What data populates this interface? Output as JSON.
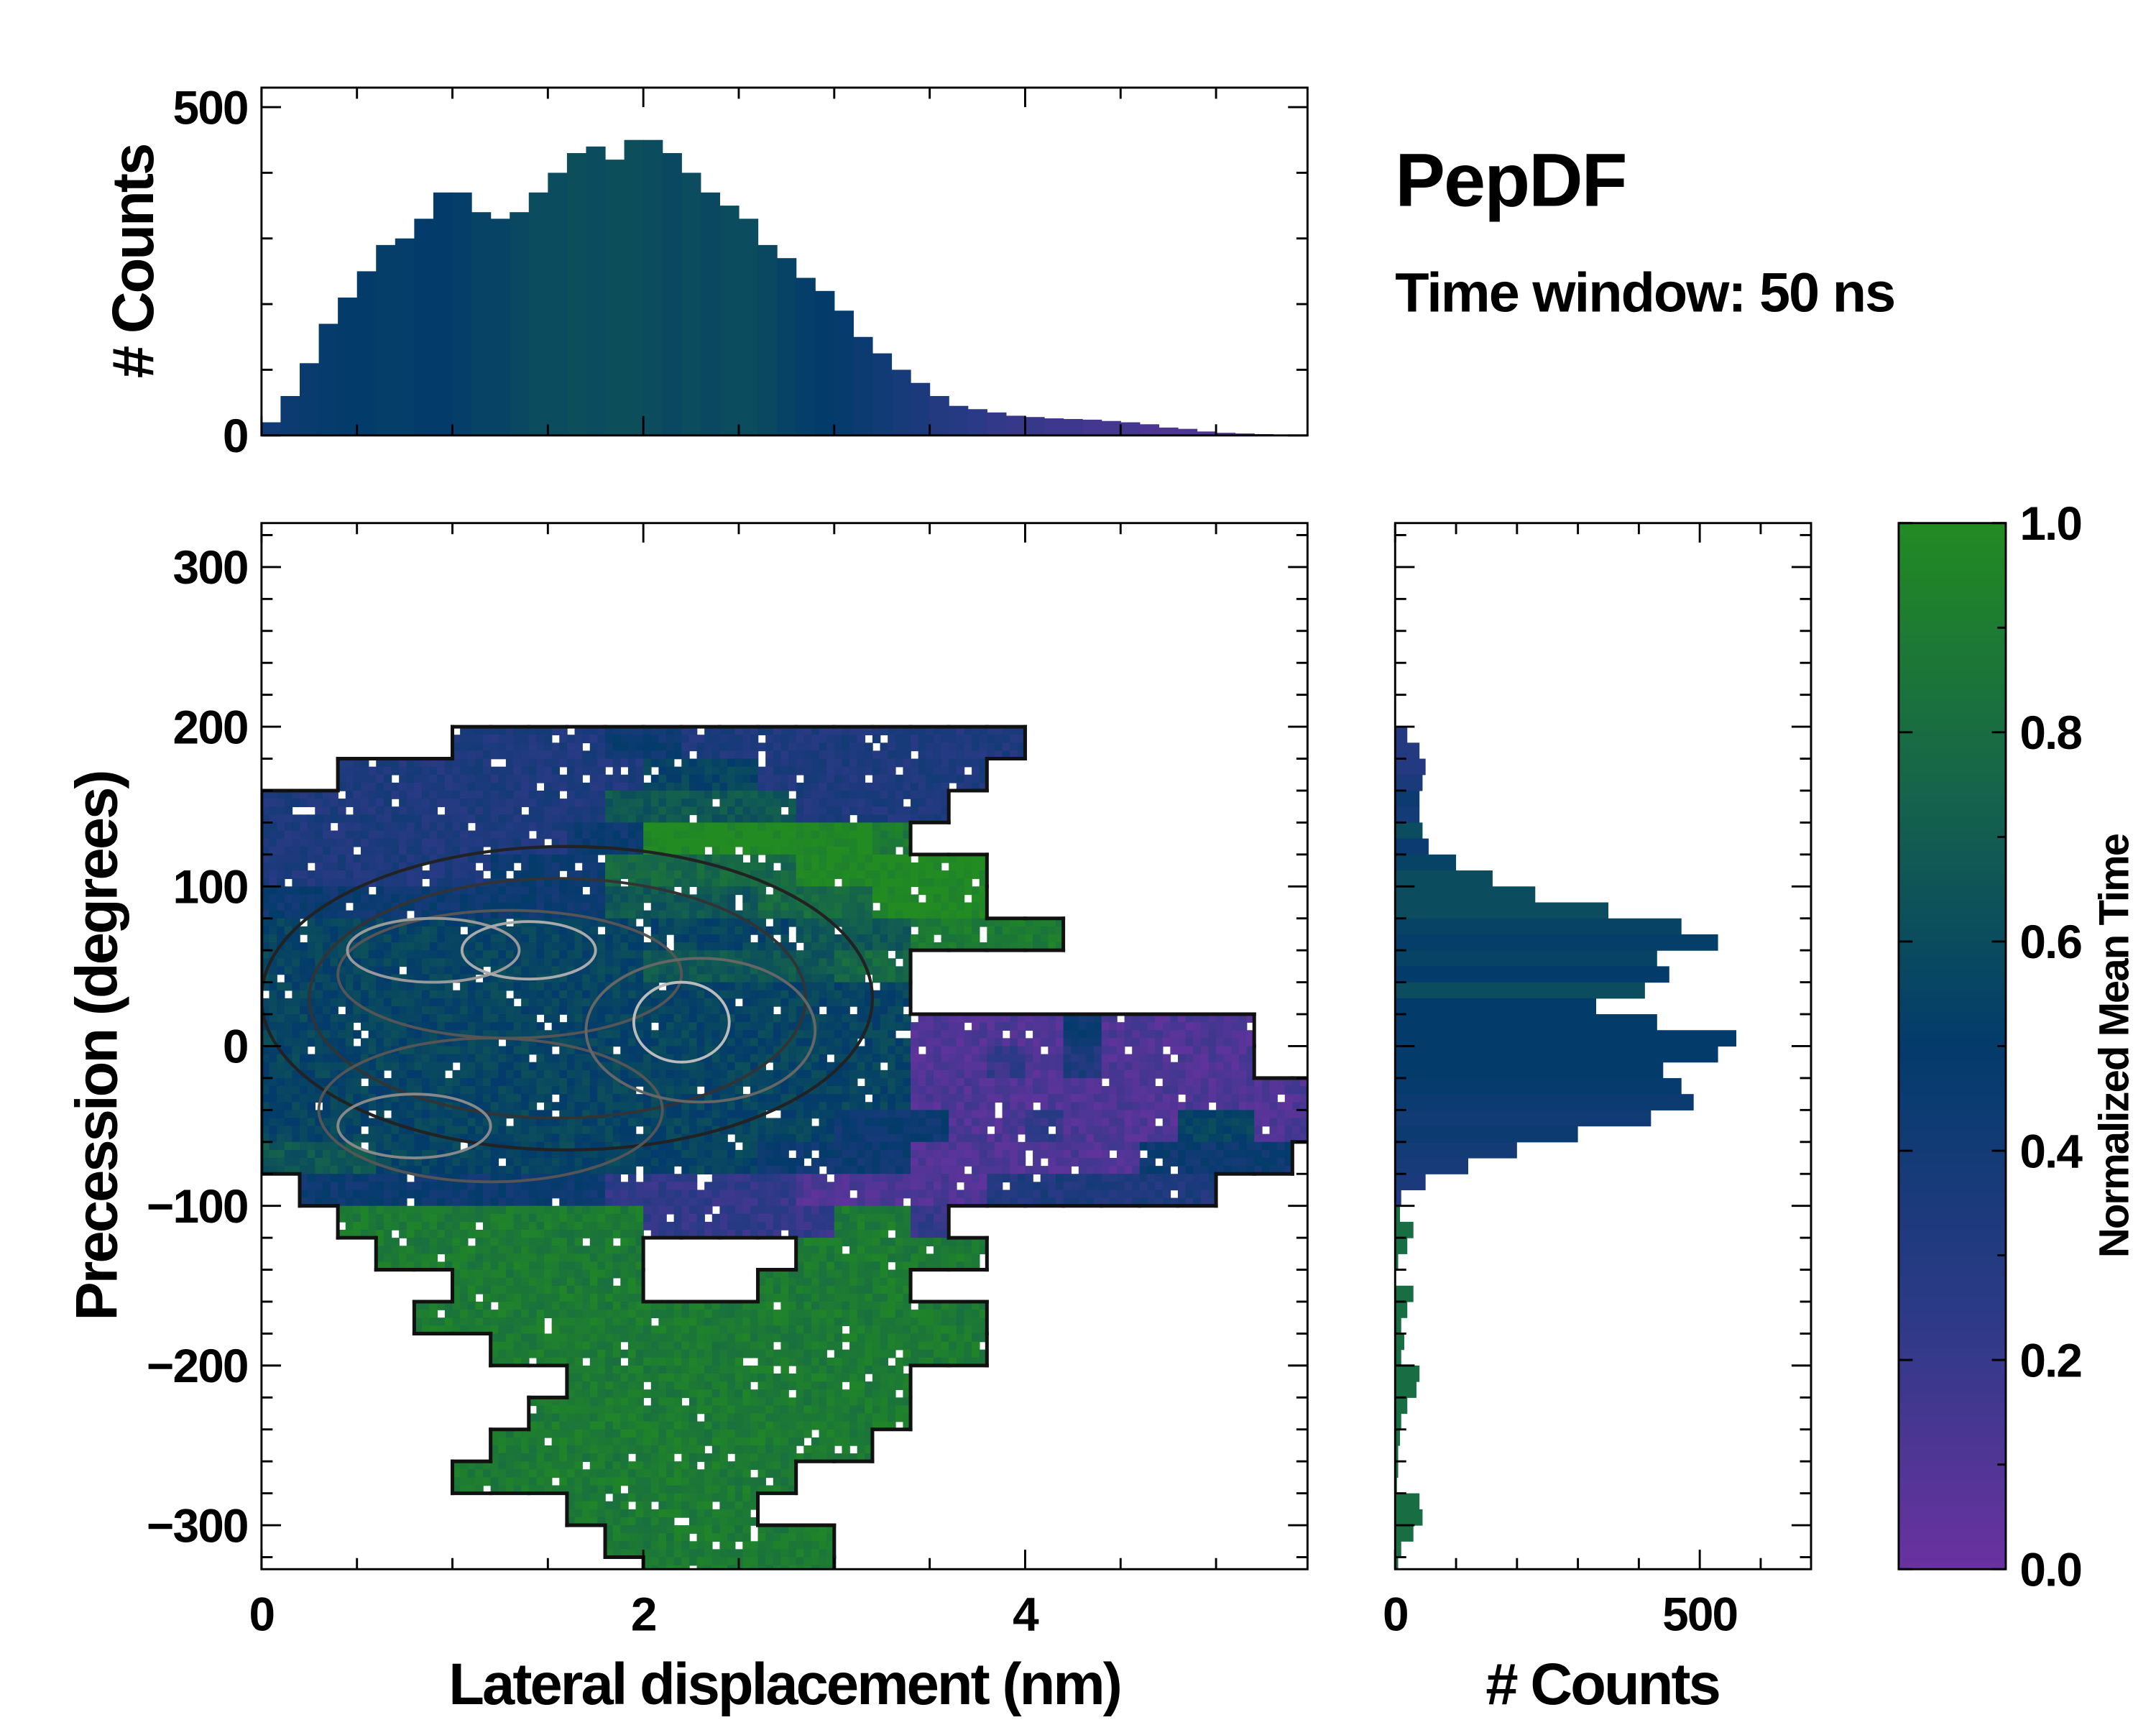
{
  "title": "PepDF",
  "subtitle": "Time window: 50 ns",
  "colormap": [
    [
      0,
      "#6a32a0"
    ],
    [
      0.25,
      "#2b3a86"
    ],
    [
      0.5,
      "#033b6b"
    ],
    [
      0.75,
      "#16654a"
    ],
    [
      1,
      "#228b22"
    ]
  ],
  "chart_data": [
    {
      "type": "heatmap",
      "name": "main",
      "xlabel": "Lateral displacement (nm)",
      "ylabel": "Precession (degrees)",
      "xlim": [
        0,
        5.48
      ],
      "ylim": [
        -328,
        327
      ],
      "xticks": [
        "0",
        "2",
        "4"
      ],
      "xtick_values": [
        0,
        2,
        4
      ],
      "yticks": [
        "300",
        "200",
        "100",
        "0",
        "−100",
        "−200",
        "−300"
      ],
      "ytick_values": [
        300,
        200,
        100,
        0,
        -100,
        -200,
        -300
      ],
      "x_bin_width": 0.2,
      "y_bin_width": 20,
      "y_row_centers_top_to_bottom": [
        190,
        170,
        150,
        130,
        110,
        90,
        70,
        50,
        30,
        10,
        -10,
        -30,
        -50,
        -70,
        -90,
        -110,
        -130,
        -150,
        -170,
        -190,
        -210,
        -230,
        -250,
        -270,
        -290,
        -310,
        -330
      ],
      "encoding": "each char is one x-bin starting at 0 nm; '.' = no data; digit d = normalized mean time d/9",
      "rows": [
        ".....333344333333333........",
        "..33333333555333333.........",
        "333333333666663333..........",
        "33333333449999998...........",
        "3333334447777799999.........",
        "4444444446666777999.........",
        "555555555555556668888.......",
        "55555555556666677...........",
        "55555555555555555...........",
        "55555555555555555111141111..",
        "55555555555555555112131111..",
        "5555555555555555511111111111",
        "5555555555555554441121115511",
        "666555555555544441111114444.",
        ".444444442222211111333333...",
        "..8888888822222882..........",
        "...8888888....88888.........",
        ".....88888...8888...........",
        "....888888888888888.........",
        "......8888888888888.........",
        "........888888888...........",
        ".......8888888888...........",
        "......8888888888............",
        ".....888888888..............",
        "........88888...............",
        ".........888888.............",
        "..........88888............."
      ],
      "contour_levels_shown": "density contours (black outer, gray inner)"
    },
    {
      "type": "bar",
      "name": "top-histogram",
      "ylabel": "# Counts",
      "ylim": [
        0,
        530
      ],
      "yticks": [
        "500",
        "0"
      ],
      "ytick_values": [
        500,
        0
      ],
      "bin_width": 0.1,
      "x": [
        0.05,
        0.15,
        0.25,
        0.35,
        0.45,
        0.55,
        0.65,
        0.75,
        0.85,
        0.95,
        1.05,
        1.15,
        1.25,
        1.35,
        1.45,
        1.55,
        1.65,
        1.75,
        1.85,
        1.95,
        2.05,
        2.15,
        2.25,
        2.35,
        2.45,
        2.55,
        2.65,
        2.75,
        2.85,
        2.95,
        3.05,
        3.15,
        3.25,
        3.35,
        3.45,
        3.55,
        3.65,
        3.75,
        3.85,
        3.95,
        4.05,
        4.15,
        4.25,
        4.35,
        4.45,
        4.55,
        4.65,
        4.75,
        4.85,
        4.95,
        5.05,
        5.15,
        5.25,
        5.35,
        5.45
      ],
      "values": [
        20,
        60,
        110,
        170,
        210,
        250,
        290,
        300,
        330,
        370,
        370,
        340,
        330,
        340,
        370,
        400,
        430,
        440,
        420,
        450,
        450,
        430,
        400,
        370,
        350,
        330,
        290,
        270,
        240,
        220,
        190,
        150,
        125,
        100,
        80,
        60,
        45,
        40,
        35,
        30,
        28,
        26,
        25,
        24,
        22,
        20,
        17,
        12,
        10,
        6,
        4,
        3,
        2,
        1,
        1
      ],
      "mean_time": [
        0.42,
        0.45,
        0.46,
        0.48,
        0.5,
        0.5,
        0.52,
        0.52,
        0.5,
        0.5,
        0.52,
        0.55,
        0.55,
        0.58,
        0.6,
        0.6,
        0.62,
        0.6,
        0.62,
        0.62,
        0.6,
        0.58,
        0.6,
        0.58,
        0.6,
        0.6,
        0.58,
        0.55,
        0.52,
        0.5,
        0.48,
        0.45,
        0.42,
        0.38,
        0.35,
        0.3,
        0.28,
        0.25,
        0.22,
        0.2,
        0.2,
        0.18,
        0.18,
        0.15,
        0.15,
        0.15,
        0.12,
        0.12,
        0.12,
        0.1,
        0.1,
        0.1,
        0.1,
        0.1,
        0.1
      ]
    },
    {
      "type": "bar",
      "orientation": "horizontal",
      "name": "right-histogram",
      "xlabel": "# Counts",
      "xlim": [
        0,
        683
      ],
      "xticks": [
        "0",
        "500"
      ],
      "xtick_values": [
        0,
        500
      ],
      "bin_width": 10,
      "y": [
        195,
        185,
        175,
        165,
        155,
        145,
        135,
        125,
        115,
        105,
        95,
        85,
        75,
        65,
        55,
        45,
        35,
        25,
        15,
        5,
        -5,
        -15,
        -25,
        -35,
        -45,
        -55,
        -65,
        -75,
        -85,
        -95,
        -105,
        -115,
        -125,
        -135,
        -145,
        -155,
        -165,
        -175,
        -185,
        -195,
        -205,
        -215,
        -225,
        -235,
        -245,
        -255,
        -265,
        -275,
        -285,
        -295,
        -305,
        -315,
        -325
      ],
      "values": [
        20,
        40,
        50,
        45,
        40,
        40,
        45,
        55,
        100,
        160,
        230,
        350,
        470,
        530,
        430,
        450,
        410,
        330,
        430,
        560,
        530,
        440,
        470,
        490,
        420,
        300,
        200,
        120,
        50,
        10,
        8,
        30,
        20,
        5,
        0,
        30,
        20,
        10,
        15,
        10,
        40,
        35,
        20,
        10,
        8,
        5,
        5,
        3,
        40,
        45,
        30,
        10,
        5
      ],
      "mean_time": [
        0.3,
        0.3,
        0.3,
        0.35,
        0.45,
        0.4,
        0.6,
        0.45,
        0.55,
        0.6,
        0.6,
        0.6,
        0.55,
        0.52,
        0.55,
        0.5,
        0.6,
        0.5,
        0.5,
        0.5,
        0.5,
        0.5,
        0.48,
        0.45,
        0.42,
        0.45,
        0.4,
        0.38,
        0.35,
        0.3,
        0.8,
        0.8,
        0.8,
        0.8,
        0.8,
        0.8,
        0.8,
        0.8,
        0.8,
        0.8,
        0.8,
        0.8,
        0.8,
        0.8,
        0.8,
        0.8,
        0.8,
        0.8,
        0.8,
        0.8,
        0.8,
        0.8,
        0.8
      ]
    },
    {
      "type": "colorbar",
      "name": "colorbar",
      "label": "Normalized Mean Time",
      "range": [
        0,
        1
      ],
      "ticks": [
        "1.0",
        "0.8",
        "0.6",
        "0.4",
        "0.2",
        "0.0"
      ],
      "tick_values": [
        1.0,
        0.8,
        0.6,
        0.4,
        0.2,
        0.0
      ]
    }
  ]
}
